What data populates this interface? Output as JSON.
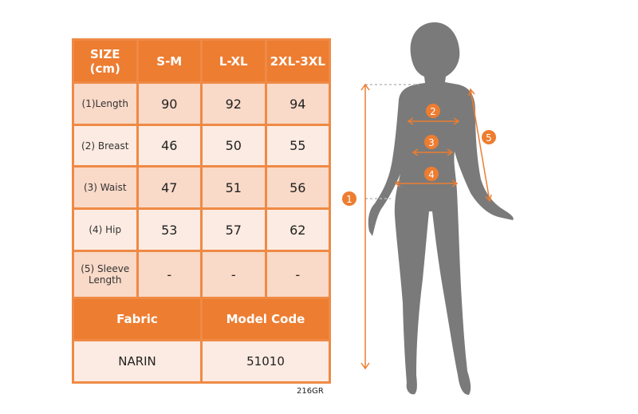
{
  "table": {
    "corner": "SIZE (cm)",
    "sizes": [
      "S-M",
      "L-XL",
      "2XL-3XL"
    ],
    "rows": [
      {
        "label": "(1)Length",
        "values": [
          "90",
          "92",
          "94"
        ]
      },
      {
        "label": "(2) Breast",
        "values": [
          "46",
          "50",
          "55"
        ]
      },
      {
        "label": "(3) Waist",
        "values": [
          "47",
          "51",
          "56"
        ]
      },
      {
        "label": "(4) Hip",
        "values": [
          "53",
          "57",
          "62"
        ]
      },
      {
        "label": "(5) Sleeve Length",
        "values": [
          "-",
          "-",
          "-"
        ]
      }
    ],
    "fabric_label": "Fabric",
    "model_code_label": "Model Code",
    "fabric_value": "NARIN",
    "model_code_value": "51010"
  },
  "code": "216GR",
  "figure": {
    "badges": [
      "1",
      "2",
      "3",
      "4",
      "5"
    ],
    "accent_color": "#ed7d31",
    "silhouette_color": "#7a7a7a"
  }
}
